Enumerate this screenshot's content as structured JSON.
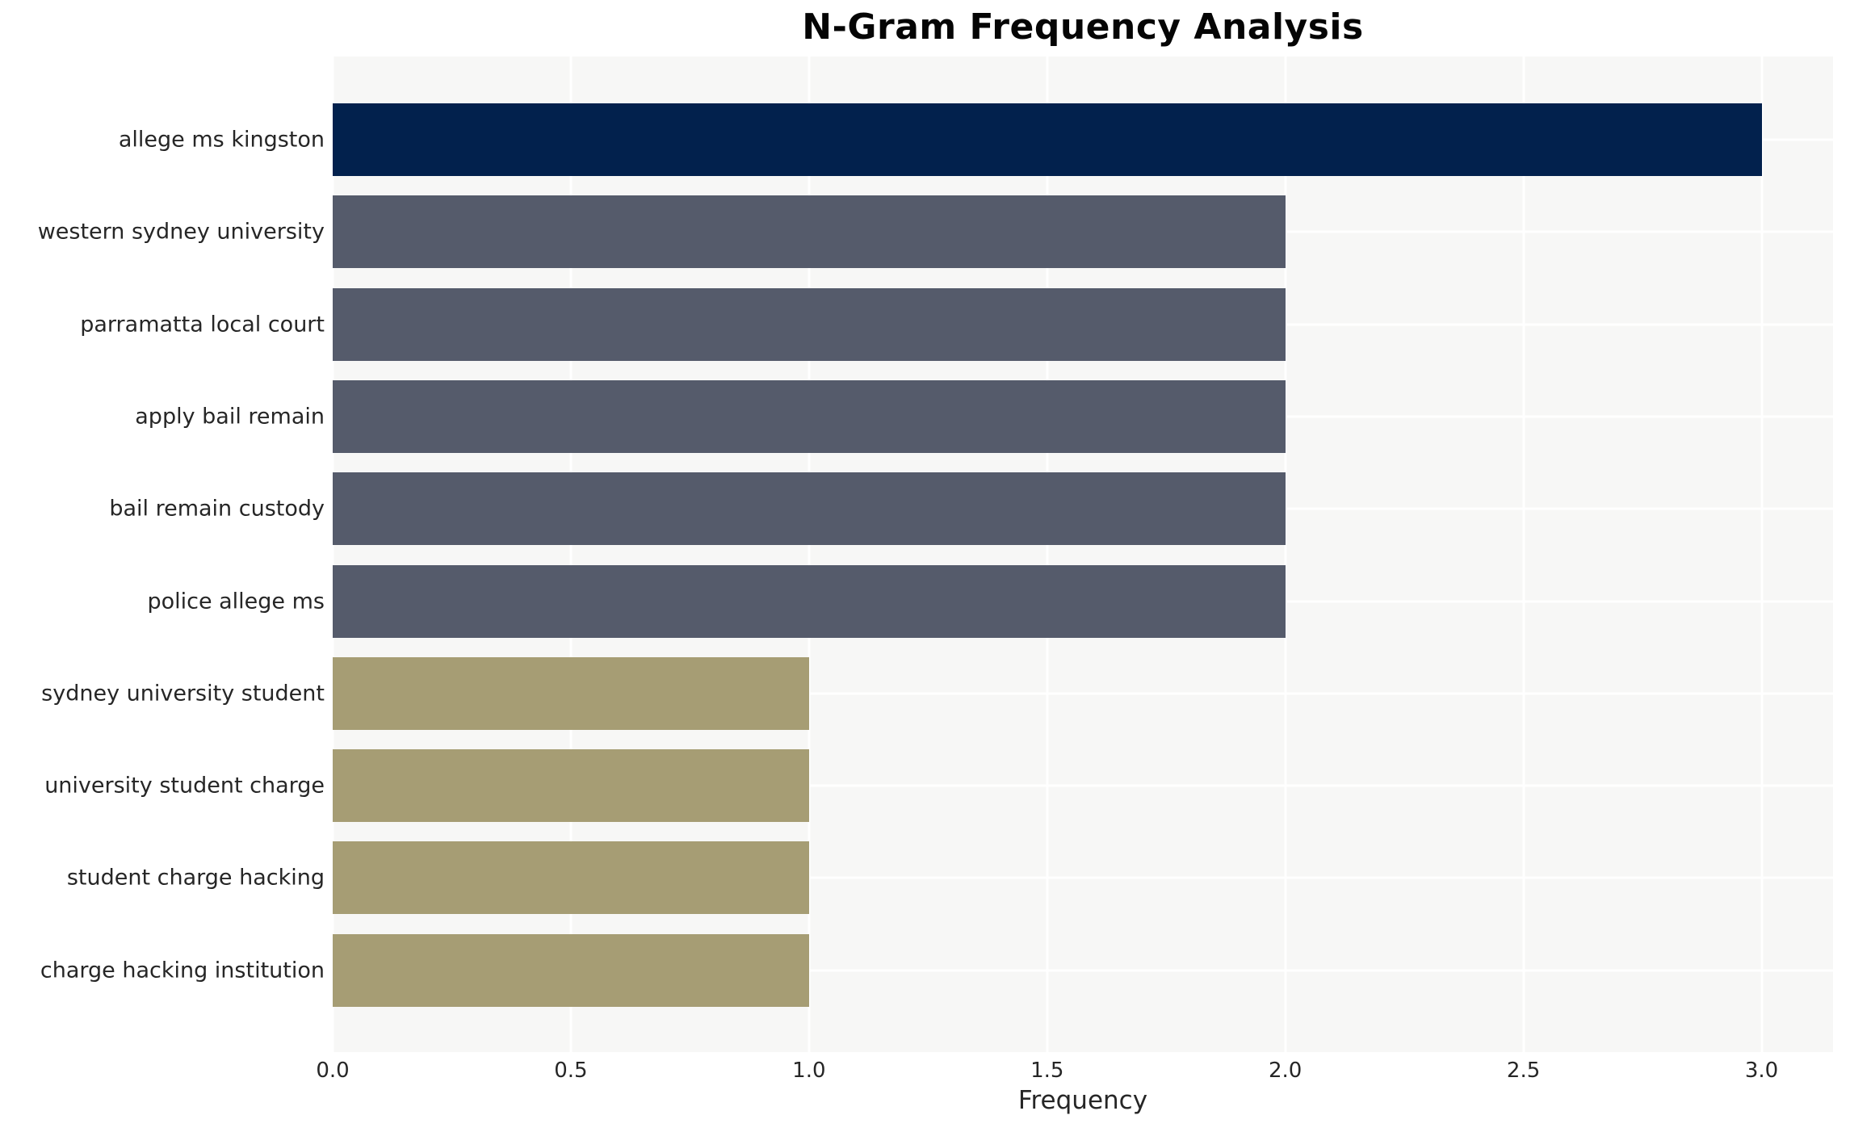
{
  "chart_data": {
    "type": "bar",
    "orientation": "horizontal",
    "title": "N-Gram Frequency Analysis",
    "xlabel": "Frequency",
    "ylabel": "",
    "categories": [
      "allege ms kingston",
      "western sydney university",
      "parramatta local court",
      "apply bail remain",
      "bail remain custody",
      "police allege ms",
      "sydney university student",
      "university student charge",
      "student charge hacking",
      "charge hacking institution"
    ],
    "values": [
      3,
      2,
      2,
      2,
      2,
      2,
      1,
      1,
      1,
      1
    ],
    "bar_colors": [
      "#02214d",
      "#555b6b",
      "#555b6b",
      "#555b6b",
      "#555b6b",
      "#555b6b",
      "#a69d74",
      "#a69d74",
      "#a69d74",
      "#a69d74"
    ],
    "xlim": [
      0,
      3.15
    ],
    "xticks": [
      0.0,
      0.5,
      1.0,
      1.5,
      2.0,
      2.5,
      3.0
    ],
    "xtick_labels": [
      "0.0",
      "0.5",
      "1.0",
      "1.5",
      "2.0",
      "2.5",
      "3.0"
    ],
    "grid": true,
    "legend": false,
    "colors": {
      "plot_background": "#f7f7f6",
      "grid_line": "#ffffff",
      "title_text": "#050505",
      "axis_text": "#262626"
    }
  }
}
